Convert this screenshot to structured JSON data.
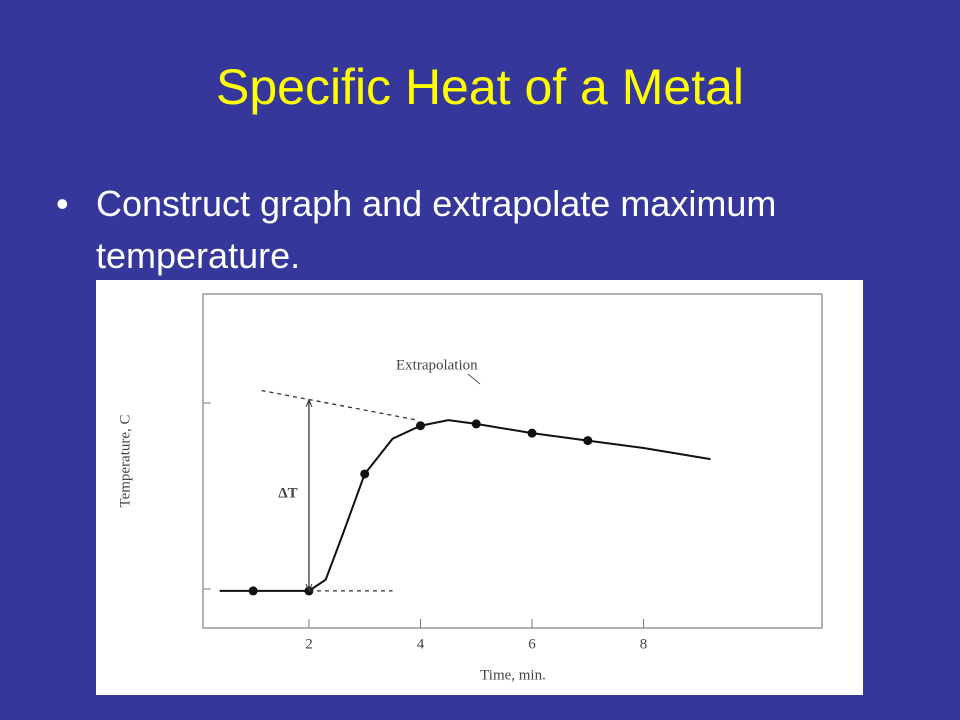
{
  "slide": {
    "title": "Specific Heat of a Metal",
    "bullet": "Construct graph and extrapolate maximum temperature."
  },
  "chart_data": {
    "type": "line",
    "x_label": "Time, min.",
    "y_label": "Temperature, C",
    "xlim": [
      0.1,
      11.2
    ],
    "ylim": [
      -0.2,
      1.6
    ],
    "xticks": [
      2,
      4,
      6,
      8
    ],
    "annotations": [
      {
        "text": "Extrapolation"
      },
      {
        "text": "ΔT"
      }
    ],
    "series": [
      {
        "style": "markers",
        "color": "#111111",
        "x": [
          1,
          2,
          3,
          4,
          5,
          6,
          7
        ],
        "values": [
          0,
          0,
          0.63,
          0.89,
          0.9,
          0.85,
          0.81
        ]
      },
      {
        "style": "solid",
        "color": "#111111",
        "x": [
          0.4,
          2,
          2.3,
          2.6,
          3,
          3.5,
          4,
          4.5,
          5,
          6,
          7,
          8,
          9.2
        ],
        "values": [
          0,
          0,
          0.06,
          0.3,
          0.63,
          0.82,
          0.89,
          0.92,
          0.9,
          0.85,
          0.81,
          0.77,
          0.71
        ]
      },
      {
        "style": "dashed",
        "color": "#333333",
        "x": [
          1.15,
          3.95
        ],
        "values": [
          1.08,
          0.92
        ]
      },
      {
        "style": "dashed",
        "color": "#333333",
        "x": [
          2,
          3.5
        ],
        "values": [
          0,
          0
        ]
      },
      {
        "style": "arrow",
        "color": "#333333",
        "x": [
          2,
          2
        ],
        "values": [
          0,
          1.03
        ]
      }
    ]
  }
}
